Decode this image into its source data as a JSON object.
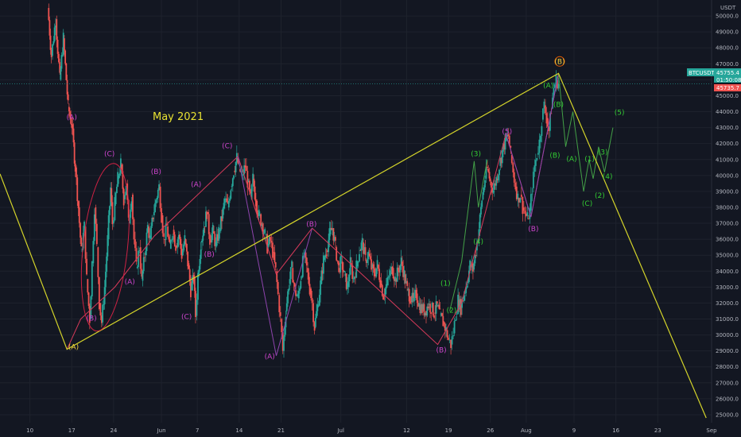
{
  "chart_data": {
    "type": "candlestick",
    "symbol": "BTCUSDT",
    "currency_label": "USDT",
    "annotation_title": "May 2021",
    "x_ticks": [
      {
        "label": "10",
        "day": 10
      },
      {
        "label": "17",
        "day": 17
      },
      {
        "label": "24",
        "day": 24
      },
      {
        "label": "Jun",
        "day": 32
      },
      {
        "label": "7",
        "day": 38
      },
      {
        "label": "14",
        "day": 45
      },
      {
        "label": "21",
        "day": 52
      },
      {
        "label": "Jul",
        "day": 62
      },
      {
        "label": "12",
        "day": 73
      },
      {
        "label": "19",
        "day": 80
      },
      {
        "label": "26",
        "day": 87
      },
      {
        "label": "Aug",
        "day": 93
      },
      {
        "label": "9",
        "day": 101
      },
      {
        "label": "16",
        "day": 108
      },
      {
        "label": "23",
        "day": 115
      },
      {
        "label": "Sep",
        "day": 124
      }
    ],
    "y_ticks": [
      25000,
      26000,
      27000,
      28000,
      29000,
      30000,
      31000,
      32000,
      33000,
      34000,
      35000,
      36000,
      37000,
      38000,
      39000,
      40000,
      41000,
      42000,
      43000,
      44000,
      45000,
      46000,
      47000,
      48000,
      49000,
      50000
    ],
    "ylim": [
      24500,
      51000
    ],
    "xlim": [
      5,
      124
    ],
    "price_path": [
      [
        13,
        50500
      ],
      [
        13.6,
        47500
      ],
      [
        14.3,
        49800
      ],
      [
        15,
        46000
      ],
      [
        15.6,
        48600
      ],
      [
        16.4,
        44300
      ],
      [
        17,
        43200
      ],
      [
        17.6,
        40500
      ],
      [
        18.1,
        38000
      ],
      [
        18.6,
        35200
      ],
      [
        19.1,
        36800
      ],
      [
        19.5,
        33500
      ],
      [
        20,
        31000
      ],
      [
        20.4,
        34500
      ],
      [
        20.8,
        38000
      ],
      [
        21.2,
        35500
      ],
      [
        21.6,
        32000
      ],
      [
        22,
        30800
      ],
      [
        22.5,
        33000
      ],
      [
        23,
        36000
      ],
      [
        23.5,
        39200
      ],
      [
        23.8,
        37000
      ],
      [
        24.2,
        38200
      ],
      [
        24.7,
        39800
      ],
      [
        25.2,
        40700
      ],
      [
        25.7,
        38500
      ],
      [
        26.1,
        39500
      ],
      [
        26.5,
        37000
      ],
      [
        27,
        38800
      ],
      [
        27.4,
        36000
      ],
      [
        27.8,
        34200
      ],
      [
        28.3,
        35500
      ],
      [
        28.7,
        33400
      ],
      [
        29.2,
        35000
      ],
      [
        29.7,
        36800
      ],
      [
        30.1,
        36000
      ],
      [
        30.6,
        37500
      ],
      [
        31.1,
        38500
      ],
      [
        31.6,
        39300
      ],
      [
        32,
        37500
      ],
      [
        32.4,
        36000
      ],
      [
        32.9,
        36800
      ],
      [
        33.4,
        35400
      ],
      [
        33.9,
        36600
      ],
      [
        34.4,
        35600
      ],
      [
        34.9,
        36300
      ],
      [
        35.4,
        35000
      ],
      [
        35.9,
        36000
      ],
      [
        36.4,
        34500
      ],
      [
        36.9,
        32800
      ],
      [
        37.4,
        33600
      ],
      [
        37.7,
        31200
      ],
      [
        38.1,
        33800
      ],
      [
        38.6,
        35800
      ],
      [
        39.1,
        36800
      ],
      [
        39.6,
        37700
      ],
      [
        40.1,
        36000
      ],
      [
        40.6,
        36500
      ],
      [
        41.1,
        35600
      ],
      [
        41.6,
        36500
      ],
      [
        42.1,
        37300
      ],
      [
        42.6,
        38500
      ],
      [
        43.1,
        38000
      ],
      [
        43.6,
        39300
      ],
      [
        44.1,
        40300
      ],
      [
        44.6,
        41100
      ],
      [
        45,
        40400
      ],
      [
        45.5,
        40000
      ],
      [
        46,
        40600
      ],
      [
        46.4,
        39600
      ],
      [
        46.9,
        38500
      ],
      [
        47.3,
        39800
      ],
      [
        47.8,
        38400
      ],
      [
        48.3,
        37500
      ],
      [
        48.8,
        37000
      ],
      [
        49.3,
        36300
      ],
      [
        49.7,
        35500
      ],
      [
        50.2,
        35900
      ],
      [
        50.6,
        35200
      ],
      [
        51.1,
        34000
      ],
      [
        51.5,
        32500
      ],
      [
        51.9,
        31000
      ],
      [
        52.3,
        29000
      ],
      [
        52.8,
        31500
      ],
      [
        53.3,
        33200
      ],
      [
        53.8,
        34200
      ],
      [
        54.3,
        32800
      ],
      [
        54.8,
        32300
      ],
      [
        55.3,
        33600
      ],
      [
        55.8,
        35000
      ],
      [
        56.3,
        34200
      ],
      [
        56.8,
        32900
      ],
      [
        57.2,
        32000
      ],
      [
        57.6,
        30500
      ],
      [
        58.1,
        31800
      ],
      [
        58.6,
        33200
      ],
      [
        59.1,
        34700
      ],
      [
        59.6,
        35300
      ],
      [
        60.1,
        36300
      ],
      [
        60.6,
        36700
      ],
      [
        61.1,
        35500
      ],
      [
        61.6,
        34200
      ],
      [
        62.1,
        34600
      ],
      [
        62.6,
        33700
      ],
      [
        63.1,
        33000
      ],
      [
        63.6,
        34500
      ],
      [
        64.1,
        33500
      ],
      [
        64.6,
        34300
      ],
      [
        65.1,
        35300
      ],
      [
        65.6,
        35800
      ],
      [
        66.1,
        34700
      ],
      [
        66.6,
        35100
      ],
      [
        67.1,
        34200
      ],
      [
        67.6,
        33800
      ],
      [
        68.1,
        34400
      ],
      [
        68.6,
        33400
      ],
      [
        69.1,
        32500
      ],
      [
        69.6,
        33100
      ],
      [
        70.1,
        33700
      ],
      [
        70.6,
        34200
      ],
      [
        71.1,
        33500
      ],
      [
        71.6,
        34000
      ],
      [
        72.1,
        34600
      ],
      [
        72.6,
        33800
      ],
      [
        73.1,
        32800
      ],
      [
        73.6,
        32400
      ],
      [
        74.1,
        32100
      ],
      [
        74.6,
        32600
      ],
      [
        75.1,
        31900
      ],
      [
        75.6,
        31600
      ],
      [
        76.1,
        31500
      ],
      [
        76.6,
        31900
      ],
      [
        77.1,
        31700
      ],
      [
        77.6,
        31400
      ],
      [
        78.1,
        31800
      ],
      [
        78.6,
        31200
      ],
      [
        79.1,
        30800
      ],
      [
        79.6,
        30300
      ],
      [
        80,
        29700
      ],
      [
        80.4,
        29400
      ],
      [
        80.8,
        30100
      ],
      [
        81.2,
        31300
      ],
      [
        81.6,
        32200
      ],
      [
        82.1,
        31700
      ],
      [
        82.6,
        32600
      ],
      [
        83.1,
        33300
      ],
      [
        83.6,
        34400
      ],
      [
        84.1,
        34100
      ],
      [
        84.6,
        35300
      ],
      [
        85.1,
        36700
      ],
      [
        85.6,
        38500
      ],
      [
        86.1,
        39800
      ],
      [
        86.5,
        40400
      ],
      [
        87,
        39600
      ],
      [
        87.5,
        39100
      ],
      [
        88,
        39800
      ],
      [
        88.5,
        40600
      ],
      [
        89,
        41500
      ],
      [
        89.5,
        42200
      ],
      [
        90,
        42500
      ],
      [
        90.4,
        41300
      ],
      [
        90.8,
        40200
      ],
      [
        91.2,
        39300
      ],
      [
        91.6,
        38600
      ],
      [
        92,
        38800
      ],
      [
        92.4,
        38000
      ],
      [
        92.8,
        37600
      ],
      [
        93.2,
        37300
      ],
      [
        93.6,
        37800
      ],
      [
        94,
        39200
      ],
      [
        94.4,
        40600
      ],
      [
        94.8,
        41300
      ],
      [
        95.2,
        42100
      ],
      [
        95.6,
        43500
      ],
      [
        96,
        44400
      ],
      [
        96.4,
        43600
      ],
      [
        96.8,
        42800
      ],
      [
        97.2,
        44200
      ],
      [
        97.6,
        45500
      ],
      [
        98,
        46000
      ],
      [
        98.4,
        45755
      ]
    ],
    "current_price": "45755.4",
    "countdown": "01:50:08",
    "ask_price": "45735.7",
    "wave_labels": [
      {
        "text": "(A)",
        "day": 17.3,
        "price": 29100,
        "color": "#f4d03f"
      },
      {
        "text": "(A)",
        "day": 17,
        "price": 43500,
        "color": "#cc44cc"
      },
      {
        "text": "(B)",
        "day": 20.3,
        "price": 30900,
        "color": "#cc44cc"
      },
      {
        "text": "(C)",
        "day": 23.3,
        "price": 41200,
        "color": "#cc44cc"
      },
      {
        "text": "(A)",
        "day": 26.7,
        "price": 33200,
        "color": "#cc44cc"
      },
      {
        "text": "(B)",
        "day": 31.1,
        "price": 40100,
        "color": "#cc44cc"
      },
      {
        "text": "(C)",
        "day": 36.2,
        "price": 31000,
        "color": "#cc44cc"
      },
      {
        "text": "(A)",
        "day": 37.8,
        "price": 39300,
        "color": "#cc44cc"
      },
      {
        "text": "(B)",
        "day": 40,
        "price": 34900,
        "color": "#cc44cc"
      },
      {
        "text": "(C)",
        "day": 43,
        "price": 41700,
        "color": "#cc44cc"
      },
      {
        "text": "(A)",
        "day": 50.1,
        "price": 28500,
        "color": "#cc44cc"
      },
      {
        "text": "(B)",
        "day": 57.1,
        "price": 36800,
        "color": "#cc44cc"
      },
      {
        "text": "(B)",
        "day": 78.8,
        "price": 28900,
        "color": "#cc44cc"
      },
      {
        "text": "(5)",
        "day": 89.8,
        "price": 42600,
        "color": "#cc44cc"
      },
      {
        "text": "(B)",
        "day": 94.2,
        "price": 36500,
        "color": "#cc44cc"
      },
      {
        "text": "(1)",
        "day": 79.5,
        "price": 33100,
        "color": "#33cc33"
      },
      {
        "text": "(2)",
        "day": 80.5,
        "price": 31400,
        "color": "#33cc33"
      },
      {
        "text": "(3)",
        "day": 84.6,
        "price": 41200,
        "color": "#33cc33"
      },
      {
        "text": "(4)",
        "day": 85,
        "price": 35700,
        "color": "#33cc33"
      },
      {
        "text": "(A)",
        "day": 96.7,
        "price": 45500,
        "color": "#33cc33"
      },
      {
        "text": "(B)",
        "day": 97.8,
        "price": 41100,
        "color": "#33cc33"
      },
      {
        "text": "(B)",
        "day": 98.4,
        "price": 44300,
        "color": "#33cc33"
      },
      {
        "text": "(A)",
        "day": 100.6,
        "price": 40900,
        "color": "#33cc33"
      },
      {
        "text": "(C)",
        "day": 103.2,
        "price": 38100,
        "color": "#33cc33"
      },
      {
        "text": "(1)",
        "day": 103.6,
        "price": 40900,
        "color": "#33cc33"
      },
      {
        "text": "(2)",
        "day": 105.3,
        "price": 38600,
        "color": "#33cc33"
      },
      {
        "text": "(3)",
        "day": 105.8,
        "price": 41300,
        "color": "#33cc33"
      },
      {
        "text": "(4)",
        "day": 106.6,
        "price": 39800,
        "color": "#33cc33"
      },
      {
        "text": "(5)",
        "day": 108.6,
        "price": 43800,
        "color": "#33cc33"
      },
      {
        "text": "(B)",
        "day": 98.6,
        "price": 47000,
        "color": "#f4d03f"
      }
    ],
    "yellow_lines": [
      [
        [
          5,
          40100
        ],
        [
          16.2,
          29100
        ],
        [
          98.4,
          46400
        ],
        [
          123.1,
          24800
        ]
      ]
    ],
    "red_lines": [
      [
        [
          16.2,
          29100
        ],
        [
          18.5,
          31000
        ],
        [
          24.2,
          33000
        ],
        [
          30.8,
          36200
        ],
        [
          44.8,
          41200
        ],
        [
          51.2,
          33800
        ],
        [
          57.2,
          36700
        ],
        [
          78.2,
          29400
        ],
        [
          82.2,
          32000
        ],
        [
          89.6,
          42600
        ],
        [
          93.8,
          37400
        ],
        [
          98.4,
          46400
        ]
      ]
    ],
    "purple_lines": [
      [
        [
          44.8,
          41200
        ],
        [
          51.2,
          28700
        ],
        [
          57.2,
          36700
        ]
      ],
      [
        [
          89.6,
          42600
        ],
        [
          93.8,
          37400
        ],
        [
          98.4,
          46400
        ]
      ]
    ],
    "green_projection": [
      [
        [
          98.4,
          46400
        ],
        [
          99.6,
          41800
        ],
        [
          100.8,
          44000
        ],
        [
          102.6,
          39000
        ],
        [
          103.5,
          41000
        ],
        [
          104.2,
          39800
        ],
        [
          105.1,
          41800
        ],
        [
          106.1,
          40200
        ],
        [
          107.5,
          43000
        ]
      ],
      [
        [
          80.2,
          31500
        ],
        [
          82.2,
          34600
        ],
        [
          84.3,
          40900
        ],
        [
          85,
          38000
        ],
        [
          86.5,
          41000
        ]
      ]
    ],
    "ellipse": {
      "day": 22.6,
      "price": 35500,
      "color": "#cc2244"
    }
  }
}
